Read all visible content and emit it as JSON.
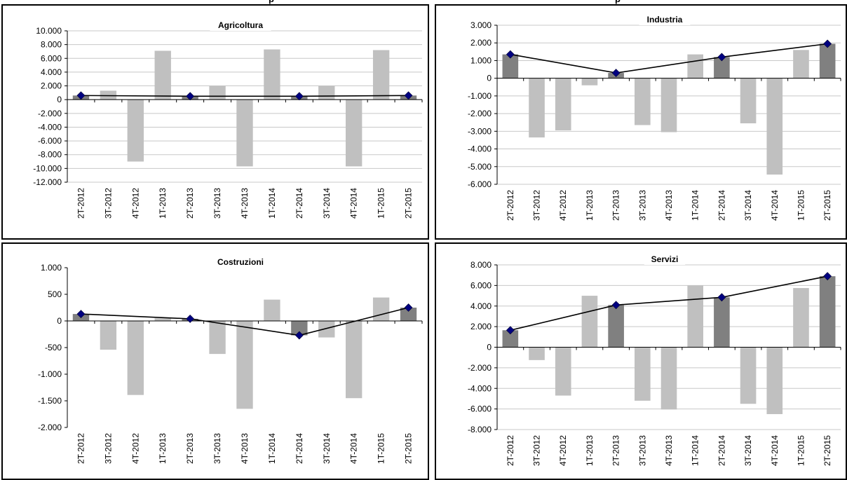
{
  "header": {
    "left_text": "p",
    "right_text": "p"
  },
  "chart_data": [
    {
      "type": "bar",
      "title": "Agricoltura",
      "categories": [
        "2T-2012",
        "3T-2012",
        "4T-2012",
        "1T-2013",
        "2T-2013",
        "3T-2013",
        "4T-2013",
        "1T-2014",
        "2T-2014",
        "3T-2014",
        "4T-2014",
        "1T-2015",
        "2T-2015"
      ],
      "series": [
        {
          "values": [
            600,
            1300,
            -9000,
            7100,
            500,
            2000,
            -9700,
            7300,
            500,
            2000,
            -9700,
            7200,
            600
          ]
        },
        {
          "type": "line",
          "values": [
            600,
            null,
            null,
            null,
            500,
            null,
            null,
            null,
            500,
            null,
            null,
            null,
            600
          ]
        }
      ],
      "highlight_color": "#808080",
      "bar_color": "#c0c0c0",
      "line_color": "#000000",
      "marker_color": "#000080",
      "ylim": [
        -12000,
        10000
      ],
      "yticks": [
        10000,
        8000,
        6000,
        4000,
        2000,
        0,
        -2000,
        -4000,
        -6000,
        -8000,
        -10000,
        -12000
      ],
      "ytick_labels": [
        "10.000",
        "8.000",
        "6.000",
        "4.000",
        "2.000",
        "0",
        "-2.000",
        "-4.000",
        "-6.000",
        "-8.000",
        "-10.000",
        "-12.000"
      ],
      "grid": true
    },
    {
      "type": "bar",
      "title": "Industria",
      "categories": [
        "2T-2012",
        "3T-2012",
        "4T-2012",
        "1T-2013",
        "2T-2013",
        "3T-2013",
        "4T-2013",
        "1T-2014",
        "2T-2014",
        "3T-2014",
        "4T-2014",
        "1T-2015",
        "2T-2015"
      ],
      "series": [
        {
          "values": [
            1350,
            -3350,
            -2950,
            -400,
            300,
            -2650,
            -3050,
            1350,
            1200,
            -2550,
            -5450,
            1600,
            1950
          ]
        },
        {
          "type": "line",
          "values": [
            1350,
            null,
            null,
            null,
            300,
            null,
            null,
            null,
            1200,
            null,
            null,
            null,
            1950
          ]
        }
      ],
      "highlight_color": "#808080",
      "bar_color": "#c0c0c0",
      "line_color": "#000000",
      "marker_color": "#000080",
      "ylim": [
        -6000,
        3000
      ],
      "yticks": [
        3000,
        2000,
        1000,
        0,
        -1000,
        -2000,
        -3000,
        -4000,
        -5000,
        -6000
      ],
      "ytick_labels": [
        "3.000",
        "2.000",
        "1.000",
        "0",
        "-1.000",
        "-2.000",
        "-3.000",
        "-4.000",
        "-5.000",
        "-6.000"
      ],
      "grid": true
    },
    {
      "type": "bar",
      "title": "Costruzioni",
      "categories": [
        "2T-2012",
        "3T-2012",
        "4T-2012",
        "1T-2013",
        "2T-2013",
        "3T-2013",
        "4T-2013",
        "1T-2014",
        "2T-2014",
        "3T-2014",
        "4T-2014",
        "1T-2015",
        "2T-2015"
      ],
      "series": [
        {
          "values": [
            130,
            -540,
            -1390,
            50,
            40,
            -620,
            -1650,
            400,
            -270,
            -310,
            -1450,
            440,
            250
          ]
        },
        {
          "type": "line",
          "values": [
            130,
            null,
            null,
            null,
            40,
            null,
            null,
            null,
            -270,
            null,
            null,
            null,
            250
          ]
        }
      ],
      "highlight_color": "#808080",
      "bar_color": "#c0c0c0",
      "line_color": "#000000",
      "marker_color": "#000080",
      "ylim": [
        -2000,
        1000
      ],
      "yticks": [
        1000,
        500,
        0,
        -500,
        -1000,
        -1500,
        -2000
      ],
      "ytick_labels": [
        "1.000",
        "500",
        "0",
        "-500",
        "-1.000",
        "-1.500",
        "-2.000"
      ],
      "grid": false
    },
    {
      "type": "bar",
      "title": "Servizi",
      "categories": [
        "2T-2012",
        "3T-2012",
        "4T-2012",
        "1T-2013",
        "2T-2013",
        "3T-2013",
        "4T-2013",
        "1T-2014",
        "2T-2014",
        "3T-2014",
        "4T-2014",
        "1T-2015",
        "2T-2015"
      ],
      "series": [
        {
          "values": [
            1650,
            -1250,
            -4700,
            5000,
            4100,
            -5200,
            -6050,
            6000,
            4850,
            -5500,
            -6500,
            5750,
            6900
          ]
        },
        {
          "type": "line",
          "values": [
            1650,
            null,
            null,
            null,
            4100,
            null,
            null,
            null,
            4850,
            null,
            null,
            null,
            6900
          ]
        }
      ],
      "highlight_color": "#808080",
      "bar_color": "#c0c0c0",
      "line_color": "#000000",
      "marker_color": "#000080",
      "ylim": [
        -8000,
        8000
      ],
      "yticks": [
        8000,
        6000,
        4000,
        2000,
        0,
        -2000,
        -4000,
        -6000,
        -8000
      ],
      "ytick_labels": [
        "8.000",
        "6.000",
        "4.000",
        "2.000",
        "0",
        "-2.000",
        "-4.000",
        "-6.000",
        "-8.000"
      ],
      "grid": true
    }
  ]
}
